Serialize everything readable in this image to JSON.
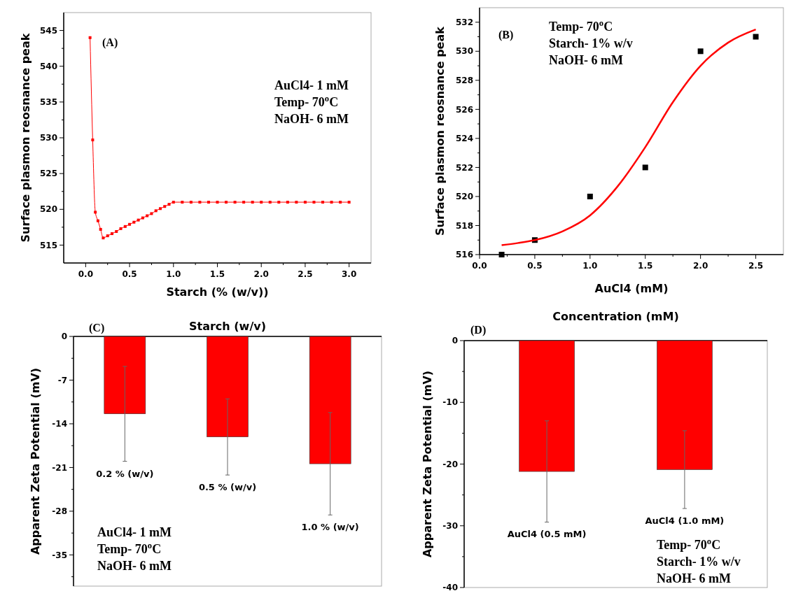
{
  "chart_data": [
    {
      "type": "line",
      "xlabel": "Starch (% (w/v))",
      "ylabel": "Surface plasmon reosnance peak",
      "marker": "square",
      "x": [
        0.05,
        0.08,
        0.11,
        0.14,
        0.17,
        0.2,
        0.25,
        0.3,
        0.35,
        0.4,
        0.45,
        0.5,
        0.55,
        0.6,
        0.65,
        0.7,
        0.75,
        0.8,
        0.85,
        0.9,
        0.95,
        1.0,
        1.1,
        1.2,
        1.3,
        1.4,
        1.5,
        1.6,
        1.7,
        1.8,
        1.9,
        2.0,
        2.1,
        2.2,
        2.3,
        2.4,
        2.5,
        2.6,
        2.7,
        2.8,
        2.9,
        3.0
      ],
      "series": [
        {
          "color": "#ff0000",
          "values": [
            544,
            529.7,
            519.6,
            518.4,
            517.2,
            516,
            516.3,
            516.6,
            516.9,
            517.3,
            517.6,
            517.9,
            518.2,
            518.5,
            518.8,
            519.1,
            519.4,
            519.8,
            520.1,
            520.4,
            520.7,
            521,
            521,
            521,
            521,
            521,
            521,
            521,
            521,
            521,
            521,
            521,
            521,
            521,
            521,
            521,
            521,
            521,
            521,
            521,
            521,
            521
          ]
        }
      ],
      "xlim": [
        -0.25,
        3.25
      ],
      "ylim": [
        512.5,
        547.5
      ],
      "xticks": [
        {
          "value": 0,
          "label": "0.0"
        },
        {
          "value": 0.25,
          "label": null
        },
        {
          "value": 0.5,
          "label": "0.5"
        },
        {
          "value": 0.75,
          "label": null
        },
        {
          "value": 1,
          "label": "1.0"
        },
        {
          "value": 1.25,
          "label": null
        },
        {
          "value": 1.5,
          "label": "1.5"
        },
        {
          "value": 1.75,
          "label": null
        },
        {
          "value": 2,
          "label": "2.0"
        },
        {
          "value": 2.25,
          "label": null
        },
        {
          "value": 2.5,
          "label": "2.5"
        },
        {
          "value": 2.75,
          "label": null
        },
        {
          "value": 3,
          "label": "3.0"
        }
      ],
      "yticks": [
        515,
        {
          "value": 517.5,
          "label": null
        },
        520,
        {
          "value": 522.5,
          "label": null
        },
        525,
        {
          "value": 527.5,
          "label": null
        },
        530,
        {
          "value": 532.5,
          "label": null
        },
        535,
        {
          "value": 537.5,
          "label": null
        },
        540,
        {
          "value": 542.5,
          "label": null
        },
        545
      ],
      "annotations": [
        "(A)",
        "AuCl4- 1 mM",
        "Temp- 70$^{o}$C",
        "NaOH- 6 mM"
      ]
    },
    {
      "type": "scatter",
      "xlabel": "AuCl4 (mM)",
      "ylabel": "Surface plasmon reosnance peak",
      "series": [
        {
          "type": "scatter",
          "marker": "square",
          "color": "#000000",
          "x": [
            0.2,
            0.5,
            1.0,
            1.5,
            2.0,
            2.5
          ],
          "values": [
            516,
            517,
            520,
            522,
            530,
            531
          ]
        },
        {
          "type": "line",
          "marker": "none",
          "color": "#ff0000",
          "x": [
            0.2,
            0.35,
            0.5,
            0.75,
            1.0,
            1.25,
            1.5,
            1.75,
            2.0,
            2.25,
            2.5
          ],
          "values": [
            516.65,
            516.8,
            517.0,
            517.6,
            518.7,
            520.7,
            523.4,
            526.5,
            529.0,
            530.6,
            531.5
          ]
        }
      ],
      "xlim": [
        0,
        2.75
      ],
      "ylim": [
        516,
        533
      ],
      "xticks": [
        {
          "value": 0,
          "label": "0.0"
        },
        {
          "value": 0.25,
          "label": null
        },
        {
          "value": 0.5,
          "label": "0.5"
        },
        {
          "value": 0.75,
          "label": null
        },
        {
          "value": 1,
          "label": "1.0"
        },
        {
          "value": 1.25,
          "label": null
        },
        {
          "value": 1.5,
          "label": "1.5"
        },
        {
          "value": 1.75,
          "label": null
        },
        {
          "value": 2,
          "label": "2.0"
        },
        {
          "value": 2.25,
          "label": null
        },
        {
          "value": 2.5,
          "label": "2.5"
        }
      ],
      "yticks": [
        516,
        {
          "value": 517,
          "label": null
        },
        518,
        {
          "value": 519,
          "label": null
        },
        520,
        {
          "value": 521,
          "label": null
        },
        522,
        {
          "value": 523,
          "label": null
        },
        524,
        {
          "value": 525,
          "label": null
        },
        526,
        {
          "value": 527,
          "label": null
        },
        528,
        {
          "value": 529,
          "label": null
        },
        530,
        {
          "value": 531,
          "label": null
        },
        532
      ],
      "annotations": [
        "(B)",
        "Temp- 70$^{o}$C",
        "Starch- 1% w/v",
        "NaOH- 6 mM"
      ]
    },
    {
      "type": "bar",
      "xlabel": "Starch (w/v)",
      "ylabel": "Apparent Zeta Potential (mV)",
      "categories": [
        "0.2 % (w/v)",
        "0.5 % (w/v)",
        "1.0 % (w/v)"
      ],
      "series": [
        {
          "color": "#ff0000",
          "values": [
            -12.4,
            -16.1,
            -20.4
          ],
          "errors": [
            7.6,
            6.1,
            8.2
          ]
        }
      ],
      "ylim": [
        -40,
        0
      ],
      "yticks": [
        0,
        {
          "value": -3.5,
          "label": null
        },
        -7,
        {
          "value": -10.5,
          "label": null
        },
        -14,
        {
          "value": -17.5,
          "label": null
        },
        -21,
        {
          "value": -24.5,
          "label": null
        },
        -28,
        {
          "value": -31.5,
          "label": null
        },
        -35,
        {
          "value": -38.5,
          "label": null
        }
      ],
      "annotations": [
        "(C)",
        "AuCl4- 1 mM",
        "Temp- 70$^{o}$C",
        "NaOH- 6 mM"
      ]
    },
    {
      "type": "bar",
      "xlabel": "Concentration (mM)",
      "ylabel": "Apparent Zeta Potential (mV)",
      "categories": [
        "AuCl4 (0.5 mM)",
        "AuCl4 (1.0 mM)"
      ],
      "series": [
        {
          "color": "#ff0000",
          "values": [
            -21.2,
            -20.9
          ],
          "errors": [
            8.2,
            6.3
          ]
        }
      ],
      "ylim": [
        -40,
        0
      ],
      "yticks": [
        0,
        {
          "value": -5,
          "label": null
        },
        -10,
        {
          "value": -15,
          "label": null
        },
        -20,
        {
          "value": -25,
          "label": null
        },
        -30,
        {
          "value": -35,
          "label": null
        },
        -40
      ],
      "annotations": [
        "(D)",
        "Temp- 70$^{o}$C",
        "Starch- 1% w/v",
        "NaOH- 6 mM"
      ]
    }
  ]
}
